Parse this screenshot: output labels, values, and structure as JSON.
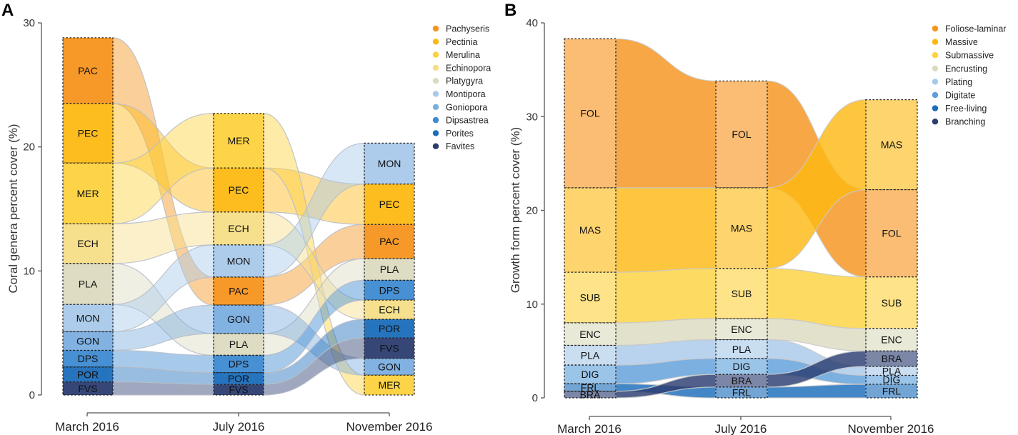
{
  "figure": {
    "panels": [
      "A",
      "B"
    ]
  },
  "chart_data": [
    {
      "type": "alluvial",
      "panel": "A",
      "title": "",
      "xlabel": "",
      "ylabel": "Coral genera percent cover (%)",
      "ylim": [
        0,
        30
      ],
      "yticks": [
        0,
        10,
        20,
        30
      ],
      "categories": [
        "March 2016",
        "July 2016",
        "November 2016"
      ],
      "legend_position": "top-right",
      "series": [
        {
          "name": "Pachyseris",
          "code": "PAC",
          "color": "#F7941D",
          "values": [
            5.3,
            2.25,
            2.75
          ]
        },
        {
          "name": "Pectinia",
          "code": "PEC",
          "color": "#FDB913",
          "values": [
            4.8,
            3.55,
            3.25
          ]
        },
        {
          "name": "Merulina",
          "code": "MER",
          "color": "#FDD23E",
          "values": [
            4.9,
            4.4,
            1.6
          ]
        },
        {
          "name": "Echinopora",
          "code": "ECH",
          "color": "#F6DE87",
          "values": [
            3.2,
            2.65,
            1.55
          ]
        },
        {
          "name": "Platygyra",
          "code": "PLA",
          "color": "#DCDBC0",
          "values": [
            3.3,
            1.75,
            1.75
          ]
        },
        {
          "name": "Montipora",
          "code": "MON",
          "color": "#A9C9EA",
          "values": [
            2.2,
            2.6,
            3.3
          ]
        },
        {
          "name": "Goniopora",
          "code": "GON",
          "color": "#7BAEE0",
          "values": [
            1.5,
            2.3,
            1.35
          ]
        },
        {
          "name": "Dipsastrea",
          "code": "DPS",
          "color": "#3D8AD1",
          "values": [
            1.35,
            1.4,
            1.6
          ]
        },
        {
          "name": "Porites",
          "code": "POR",
          "color": "#1B6DBA",
          "values": [
            1.2,
            0.95,
            1.5
          ]
        },
        {
          "name": "Favites",
          "code": "FVS",
          "color": "#2B3D70",
          "values": [
            1.05,
            0.85,
            1.65
          ]
        }
      ],
      "stack_order_top_to_bottom": [
        [
          "PAC",
          "PEC",
          "MER",
          "ECH",
          "PLA",
          "MON",
          "GON",
          "DPS",
          "POR",
          "FVS"
        ],
        [
          "MER",
          "PEC",
          "ECH",
          "MON",
          "PAC",
          "GON",
          "PLA",
          "DPS",
          "POR",
          "FVS"
        ],
        [
          "MON",
          "PEC",
          "PAC",
          "PLA",
          "DPS",
          "ECH",
          "POR",
          "FVS",
          "GON",
          "MER"
        ]
      ]
    },
    {
      "type": "alluvial",
      "panel": "B",
      "title": "",
      "xlabel": "",
      "ylabel": "Growth form percent cover (%)",
      "ylim": [
        0,
        40
      ],
      "yticks": [
        0,
        10,
        20,
        30,
        40
      ],
      "categories": [
        "March 2016",
        "July 2016",
        "November 2016"
      ],
      "legend_position": "top-right",
      "series": [
        {
          "name": "Foliose-laminar",
          "code": "FOL",
          "color": "#F7941D",
          "values": [
            15.9,
            11.4,
            9.3
          ]
        },
        {
          "name": "Massive",
          "code": "MAS",
          "color": "#FDB913",
          "values": [
            9.0,
            8.6,
            9.6
          ]
        },
        {
          "name": "Submassive",
          "code": "SUB",
          "color": "#FDD23E",
          "values": [
            5.4,
            5.35,
            5.5
          ]
        },
        {
          "name": "Encrusting",
          "code": "ENC",
          "color": "#DCDBC0",
          "values": [
            2.4,
            2.25,
            2.4
          ]
        },
        {
          "name": "Plating",
          "code": "PLA",
          "color": "#A9C9EA",
          "values": [
            2.1,
            2.0,
            0.95
          ]
        },
        {
          "name": "Digitate",
          "code": "DIG",
          "color": "#5E9FDB",
          "values": [
            2.0,
            1.7,
            0.95
          ]
        },
        {
          "name": "Free-living",
          "code": "FRL",
          "color": "#1B6DBA",
          "values": [
            0.8,
            1.15,
            1.45
          ]
        },
        {
          "name": "Branching",
          "code": "BRA",
          "color": "#2B3D70",
          "values": [
            0.7,
            1.35,
            1.65
          ]
        }
      ],
      "stack_order_top_to_bottom": [
        [
          "FOL",
          "MAS",
          "SUB",
          "ENC",
          "PLA",
          "DIG",
          "FRL",
          "BRA"
        ],
        [
          "FOL",
          "MAS",
          "SUB",
          "ENC",
          "PLA",
          "DIG",
          "BRA",
          "FRL"
        ],
        [
          "MAS",
          "FOL",
          "SUB",
          "ENC",
          "BRA",
          "PLA",
          "DIG",
          "FRL"
        ]
      ]
    }
  ]
}
